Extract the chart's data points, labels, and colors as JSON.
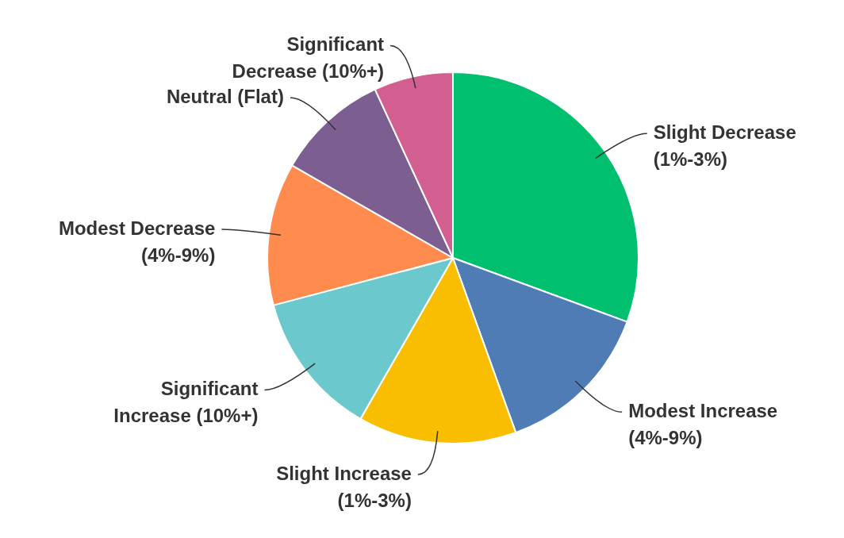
{
  "chart_data": {
    "type": "pie",
    "categories": [
      "Slight Decrease (1%-3%)",
      "Modest Increase (4%-9%)",
      "Slight Increase (1%-3%)",
      "Significant Increase (10%+)",
      "Modest Decrease (4%-9%)",
      "Neutral (Flat)",
      "Significant Decrease (10%+)"
    ],
    "values": [
      30.6,
      13.9,
      13.8,
      12.6,
      12.4,
      9.8,
      6.9
    ],
    "colors": [
      "#00bf6f",
      "#507cb6",
      "#f9be00",
      "#6bc8cd",
      "#ff8b4f",
      "#7d5e90",
      "#d25f90"
    ],
    "legend": false
  }
}
